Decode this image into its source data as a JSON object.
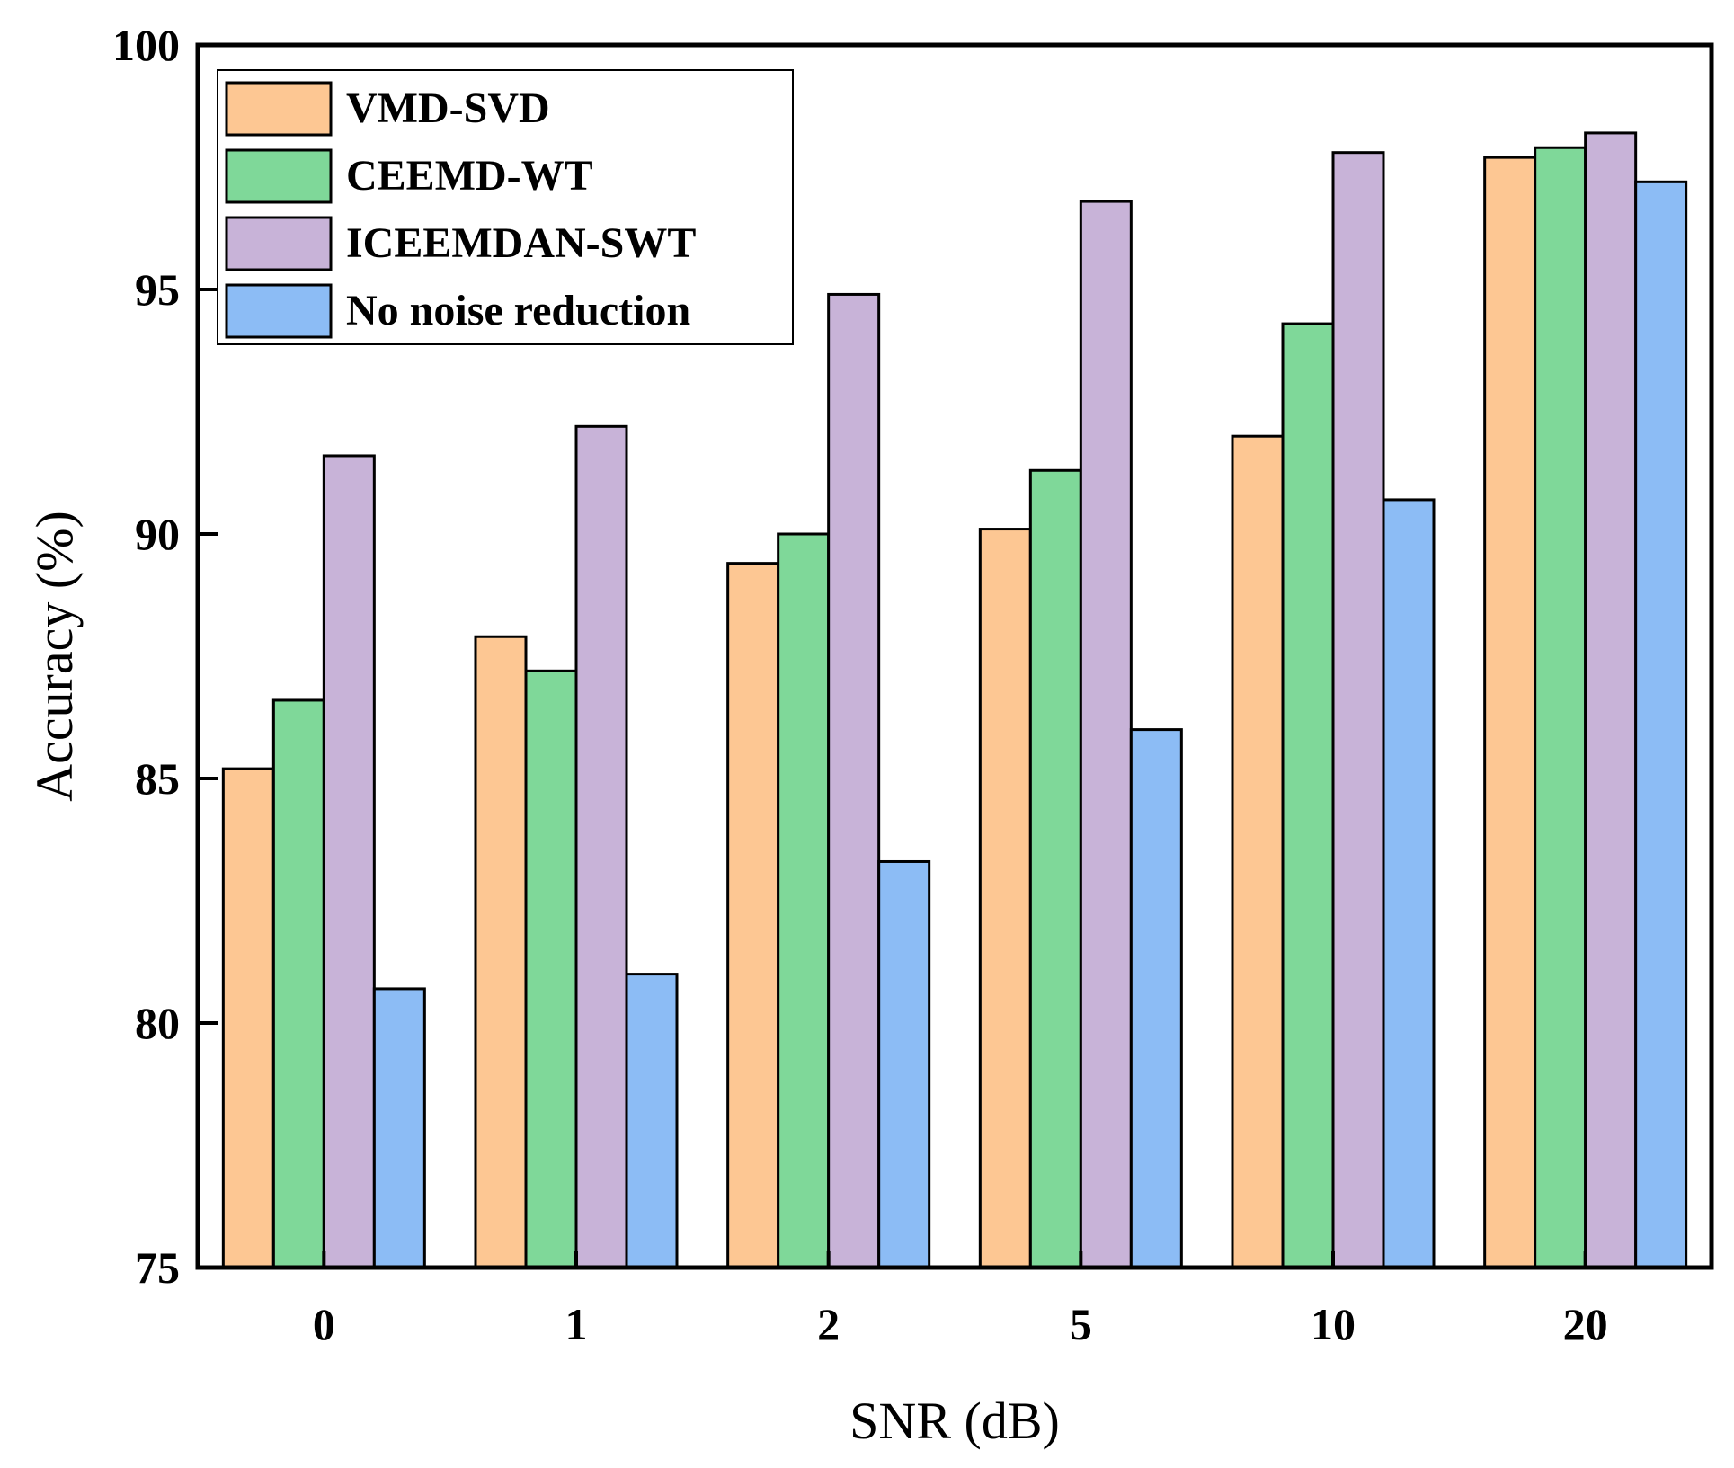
{
  "chart_data": {
    "type": "bar",
    "title": "",
    "xlabel": "SNR (dB)",
    "ylabel": "Accuracy (%)",
    "ylim": [
      75,
      100
    ],
    "yticks": [
      "75",
      "80",
      "85",
      "90",
      "95",
      "100"
    ],
    "categories": [
      "0",
      "1",
      "2",
      "5",
      "10",
      "20"
    ],
    "legend_position": "top-left",
    "series": [
      {
        "name": "VMD-SVD",
        "color": "#FDC793",
        "values": [
          85.2,
          87.9,
          89.4,
          90.1,
          92.0,
          97.7
        ]
      },
      {
        "name": "CEEMD-WT",
        "color": "#7FD899",
        "values": [
          86.6,
          87.2,
          90.0,
          91.3,
          94.3,
          97.9
        ]
      },
      {
        "name": "ICEEMDAN-SWT",
        "color": "#C8B3D8",
        "values": [
          91.6,
          92.2,
          94.9,
          96.8,
          97.8,
          98.2
        ]
      },
      {
        "name": "No noise reduction",
        "color": "#8CBCF5",
        "values": [
          80.7,
          81.0,
          83.3,
          86.0,
          90.7,
          97.2
        ]
      }
    ]
  }
}
